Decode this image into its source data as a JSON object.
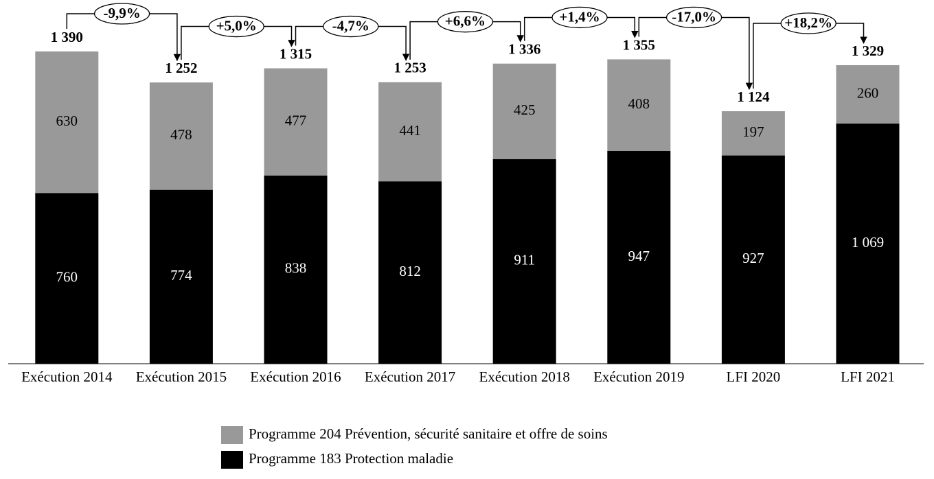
{
  "chart_data": {
    "type": "stacked_bar",
    "categories": [
      "Exécution 2014",
      "Exécution 2015",
      "Exécution 2016",
      "Exécution 2017",
      "Exécution 2018",
      "Exécution 2019",
      "LFI 2020",
      "LFI 2021"
    ],
    "series": [
      {
        "name": "Programme 183 Protection maladie",
        "color": "#000000",
        "label_color": "#ffffff",
        "values": [
          760,
          774,
          838,
          812,
          911,
          947,
          927,
          1069
        ],
        "value_labels": [
          "760",
          "774",
          "838",
          "812",
          "911",
          "947",
          "927",
          "1 069"
        ]
      },
      {
        "name": "Programme 204 Prévention, sécurité sanitaire et offre de soins",
        "color": "#999999",
        "label_color": "#000000",
        "values": [
          630,
          478,
          477,
          441,
          425,
          408,
          197,
          260
        ]
      }
    ],
    "total_labels": [
      "1 390",
      "1 252",
      "1 315",
      "1 253",
      "1 336",
      "1 355",
      "1 124",
      "1 329"
    ],
    "changes": [
      "-9,9%",
      "+5,0%",
      "-4,7%",
      "+6,6%",
      "+1,4%",
      "-17,0%",
      "+18,2%"
    ]
  }
}
